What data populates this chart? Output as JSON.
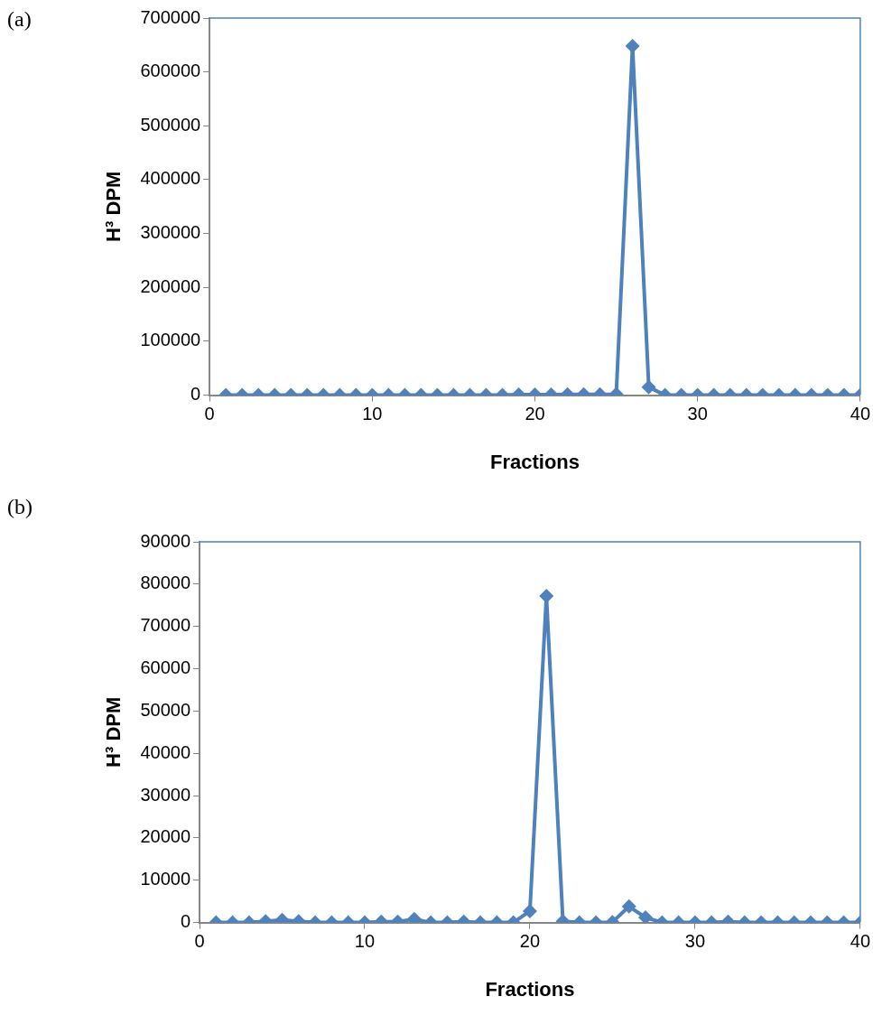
{
  "chart_data": [
    {
      "type": "line",
      "title": "(a)",
      "xlabel": "Fractions",
      "ylabel": "H³ DPM",
      "x": [
        1,
        2,
        3,
        4,
        5,
        6,
        7,
        8,
        9,
        10,
        11,
        12,
        13,
        14,
        15,
        16,
        17,
        18,
        19,
        20,
        21,
        22,
        23,
        24,
        25,
        26,
        27,
        28,
        29,
        30,
        31,
        32,
        33,
        34,
        35,
        36,
        37,
        38,
        39,
        40
      ],
      "series": [
        {
          "color": "#4f81bd",
          "values": [
            0,
            0,
            0,
            0,
            0,
            0,
            0,
            0,
            0,
            0,
            0,
            0,
            0,
            0,
            0,
            0,
            0,
            0,
            1000,
            1000,
            1000,
            1500,
            1500,
            1500,
            2000,
            648000,
            15000,
            0,
            0,
            0,
            0,
            0,
            0,
            0,
            0,
            0,
            0,
            0,
            0,
            0
          ]
        }
      ],
      "xlim": [
        0,
        40
      ],
      "xticks": [
        0,
        10,
        20,
        30,
        40
      ],
      "ylim": [
        0,
        700000
      ],
      "yticks": [
        0,
        100000,
        200000,
        300000,
        400000,
        500000,
        600000,
        700000
      ],
      "grid": false,
      "legend": false,
      "marker": "diamond",
      "line_style": "solid"
    },
    {
      "type": "line",
      "title": "(b)",
      "xlabel": "Fractions",
      "ylabel": "H³ DPM",
      "x": [
        1,
        2,
        3,
        4,
        5,
        6,
        7,
        8,
        9,
        10,
        11,
        12,
        13,
        14,
        15,
        16,
        17,
        18,
        19,
        20,
        21,
        22,
        23,
        24,
        25,
        26,
        27,
        28,
        29,
        30,
        31,
        32,
        33,
        34,
        35,
        36,
        37,
        38,
        39,
        40
      ],
      "series": [
        {
          "color": "#4f81bd",
          "values": [
            0,
            0,
            0,
            300,
            600,
            300,
            0,
            0,
            0,
            0,
            200,
            200,
            800,
            0,
            0,
            200,
            0,
            0,
            0,
            2700,
            77200,
            300,
            0,
            0,
            100,
            3800,
            1200,
            0,
            0,
            0,
            0,
            200,
            0,
            0,
            0,
            0,
            0,
            0,
            0,
            0
          ]
        }
      ],
      "xlim": [
        0,
        40
      ],
      "xticks": [
        0,
        10,
        20,
        30,
        40
      ],
      "ylim": [
        0,
        90000
      ],
      "yticks": [
        0,
        10000,
        20000,
        30000,
        40000,
        50000,
        60000,
        70000,
        80000,
        90000
      ],
      "grid": false,
      "legend": false,
      "marker": "diamond",
      "line_style": "solid"
    }
  ]
}
